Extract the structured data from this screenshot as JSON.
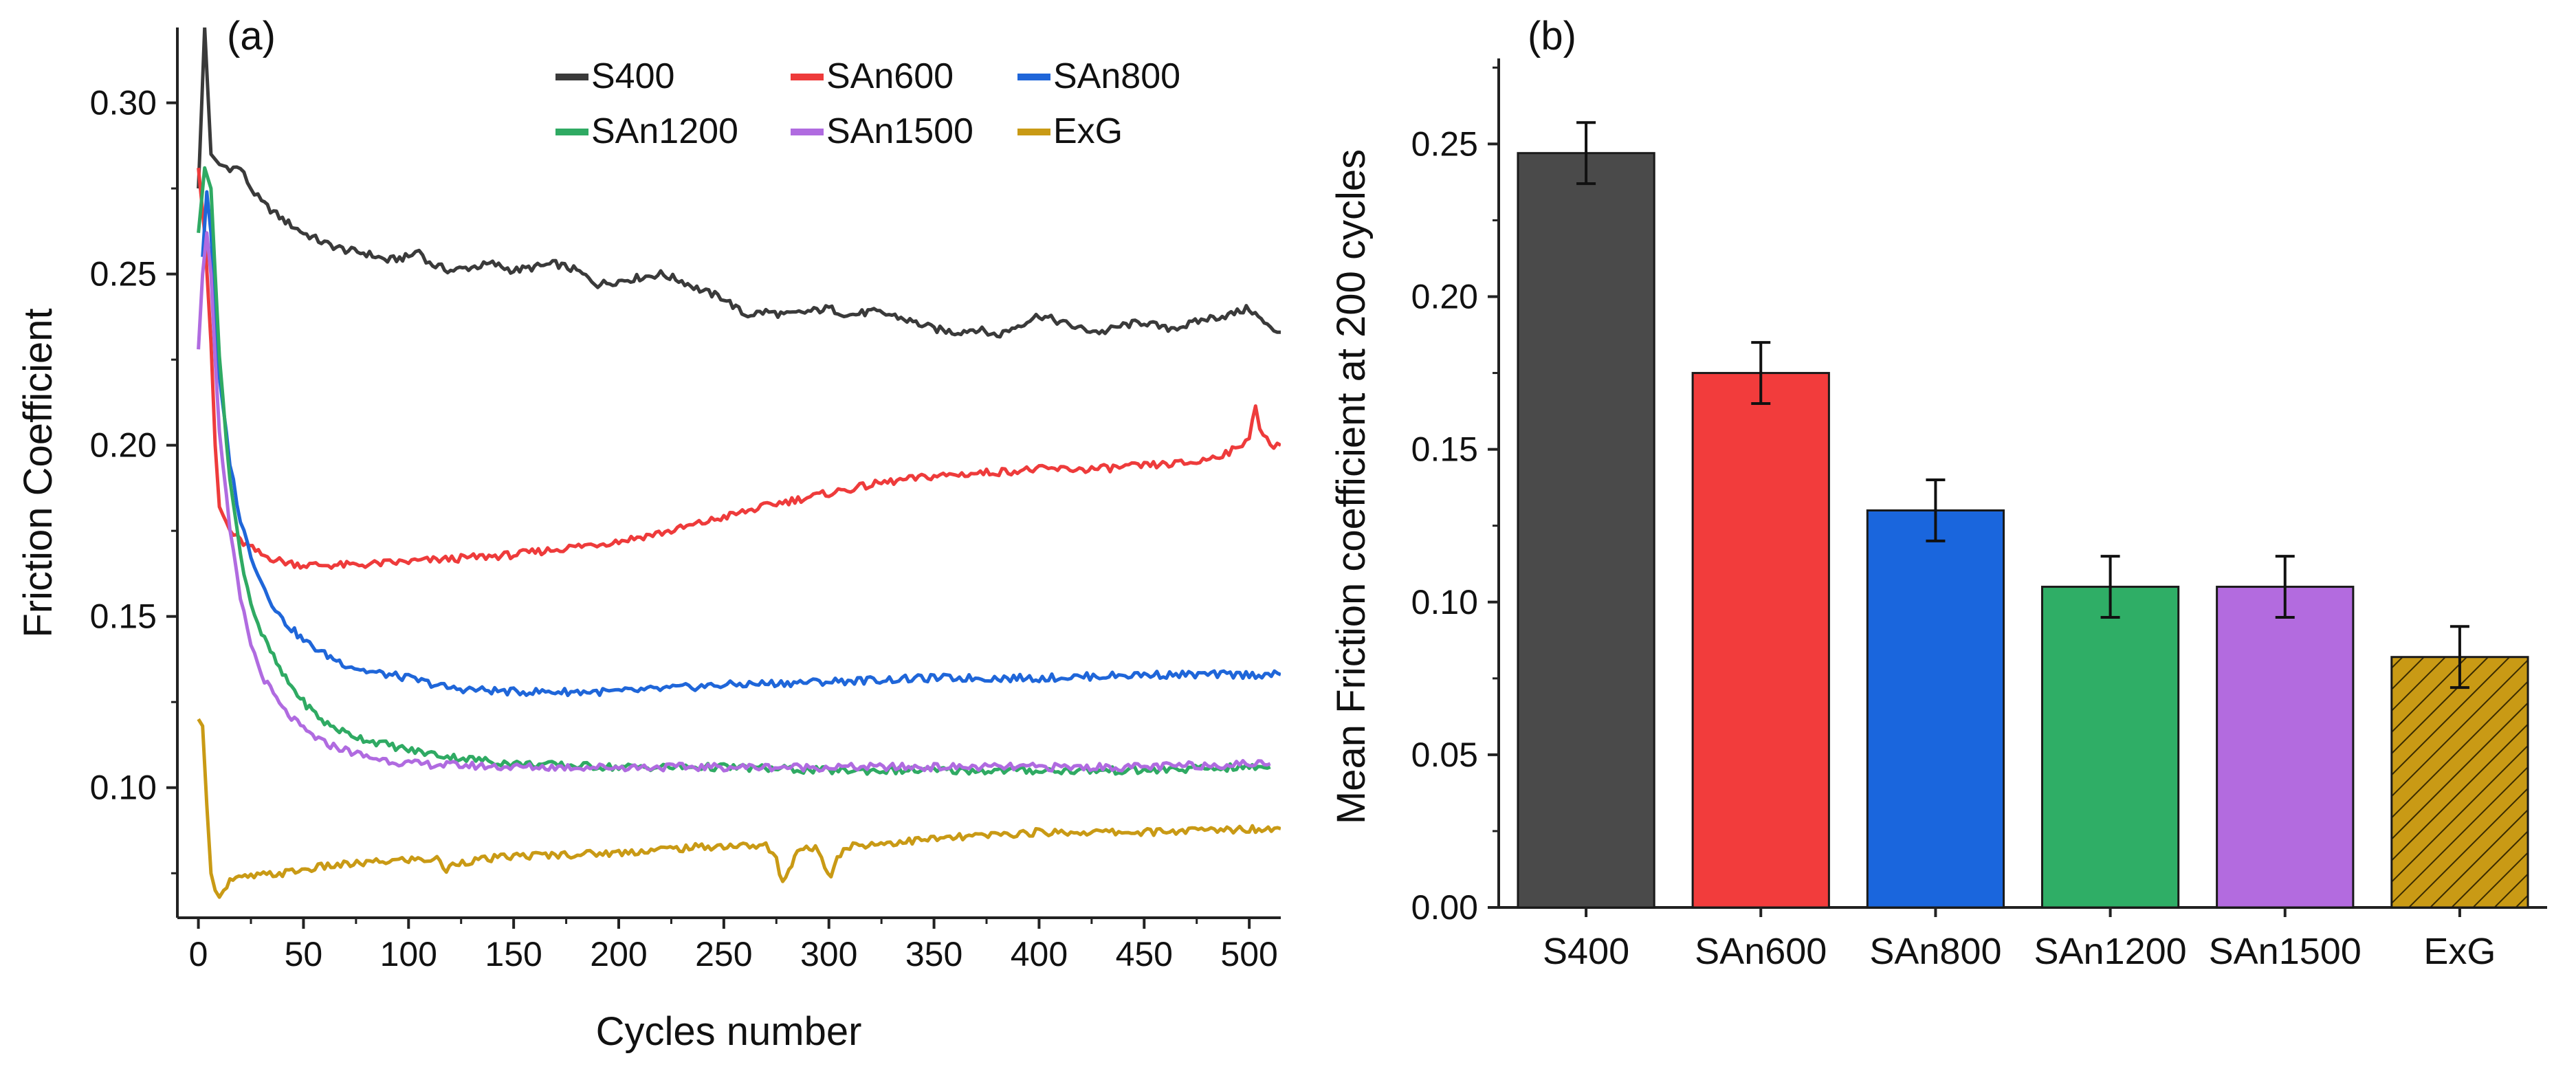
{
  "chart_data": [
    {
      "panel_label": "(a)",
      "type": "line",
      "xlabel": "Cycles number",
      "ylabel": "Friction Coefficient",
      "xlim": [
        -10,
        515
      ],
      "ylim": [
        0.062,
        0.322
      ],
      "xticks": [
        0,
        50,
        100,
        150,
        200,
        250,
        300,
        350,
        400,
        450,
        500
      ],
      "yticks": [
        0.1,
        0.15,
        0.2,
        0.25,
        0.3
      ],
      "yticks_labels": [
        "0.10",
        "0.15",
        "0.20",
        "0.25",
        "0.30"
      ],
      "legend_position": "top-right",
      "series": [
        {
          "name": "S400",
          "color": "#3a3a3a",
          "points": [
            [
              0,
              0.275
            ],
            [
              3,
              0.322
            ],
            [
              6,
              0.285
            ],
            [
              10,
              0.282
            ],
            [
              15,
              0.281
            ],
            [
              20,
              0.281
            ],
            [
              25,
              0.275
            ],
            [
              30,
              0.271
            ],
            [
              40,
              0.266
            ],
            [
              50,
              0.262
            ],
            [
              60,
              0.259
            ],
            [
              70,
              0.257
            ],
            [
              80,
              0.256
            ],
            [
              90,
              0.254
            ],
            [
              100,
              0.255
            ],
            [
              105,
              0.257
            ],
            [
              110,
              0.253
            ],
            [
              120,
              0.251
            ],
            [
              130,
              0.252
            ],
            [
              140,
              0.253
            ],
            [
              150,
              0.251
            ],
            [
              160,
              0.252
            ],
            [
              170,
              0.253
            ],
            [
              180,
              0.251
            ],
            [
              190,
              0.247
            ],
            [
              200,
              0.248
            ],
            [
              210,
              0.249
            ],
            [
              220,
              0.25
            ],
            [
              230,
              0.248
            ],
            [
              240,
              0.245
            ],
            [
              250,
              0.243
            ],
            [
              260,
              0.238
            ],
            [
              270,
              0.239
            ],
            [
              280,
              0.238
            ],
            [
              290,
              0.239
            ],
            [
              300,
              0.24
            ],
            [
              310,
              0.238
            ],
            [
              320,
              0.239
            ],
            [
              330,
              0.238
            ],
            [
              340,
              0.236
            ],
            [
              350,
              0.234
            ],
            [
              360,
              0.233
            ],
            [
              370,
              0.234
            ],
            [
              380,
              0.232
            ],
            [
              390,
              0.235
            ],
            [
              400,
              0.238
            ],
            [
              410,
              0.236
            ],
            [
              420,
              0.234
            ],
            [
              430,
              0.233
            ],
            [
              440,
              0.235
            ],
            [
              450,
              0.236
            ],
            [
              460,
              0.234
            ],
            [
              470,
              0.235
            ],
            [
              480,
              0.237
            ],
            [
              490,
              0.238
            ],
            [
              500,
              0.24
            ],
            [
              510,
              0.234
            ],
            [
              515,
              0.233
            ]
          ]
        },
        {
          "name": "SAn600",
          "color": "#ee3b3b",
          "points": [
            [
              0,
              0.281
            ],
            [
              3,
              0.262
            ],
            [
              6,
              0.23
            ],
            [
              8,
              0.2
            ],
            [
              10,
              0.182
            ],
            [
              15,
              0.175
            ],
            [
              20,
              0.172
            ],
            [
              30,
              0.168
            ],
            [
              40,
              0.166
            ],
            [
              50,
              0.165
            ],
            [
              75,
              0.165
            ],
            [
              100,
              0.166
            ],
            [
              125,
              0.167
            ],
            [
              150,
              0.168
            ],
            [
              175,
              0.17
            ],
            [
              200,
              0.172
            ],
            [
              225,
              0.175
            ],
            [
              250,
              0.179
            ],
            [
              275,
              0.183
            ],
            [
              300,
              0.186
            ],
            [
              325,
              0.189
            ],
            [
              350,
              0.191
            ],
            [
              375,
              0.192
            ],
            [
              400,
              0.193
            ],
            [
              425,
              0.193
            ],
            [
              450,
              0.194
            ],
            [
              475,
              0.195
            ],
            [
              495,
              0.199
            ],
            [
              500,
              0.203
            ],
            [
              503,
              0.212
            ],
            [
              505,
              0.204
            ],
            [
              510,
              0.2
            ],
            [
              515,
              0.2
            ]
          ]
        },
        {
          "name": "SAn800",
          "color": "#1f66d9",
          "points": [
            [
              2,
              0.255
            ],
            [
              4,
              0.274
            ],
            [
              6,
              0.262
            ],
            [
              8,
              0.24
            ],
            [
              10,
              0.22
            ],
            [
              15,
              0.195
            ],
            [
              20,
              0.178
            ],
            [
              25,
              0.168
            ],
            [
              30,
              0.16
            ],
            [
              35,
              0.154
            ],
            [
              40,
              0.149
            ],
            [
              50,
              0.143
            ],
            [
              60,
              0.139
            ],
            [
              70,
              0.136
            ],
            [
              80,
              0.134
            ],
            [
              100,
              0.132
            ],
            [
              120,
              0.129
            ],
            [
              150,
              0.128
            ],
            [
              200,
              0.128
            ],
            [
              250,
              0.13
            ],
            [
              300,
              0.131
            ],
            [
              350,
              0.132
            ],
            [
              400,
              0.132
            ],
            [
              450,
              0.133
            ],
            [
              500,
              0.133
            ],
            [
              515,
              0.133
            ]
          ]
        },
        {
          "name": "SAn1200",
          "color": "#2faa63",
          "points": [
            [
              0,
              0.262
            ],
            [
              3,
              0.281
            ],
            [
              6,
              0.275
            ],
            [
              8,
              0.25
            ],
            [
              10,
              0.226
            ],
            [
              15,
              0.19
            ],
            [
              20,
              0.168
            ],
            [
              25,
              0.154
            ],
            [
              30,
              0.145
            ],
            [
              40,
              0.133
            ],
            [
              50,
              0.125
            ],
            [
              60,
              0.119
            ],
            [
              70,
              0.116
            ],
            [
              80,
              0.114
            ],
            [
              100,
              0.111
            ],
            [
              120,
              0.109
            ],
            [
              150,
              0.107
            ],
            [
              200,
              0.106
            ],
            [
              250,
              0.106
            ],
            [
              300,
              0.105
            ],
            [
              350,
              0.105
            ],
            [
              400,
              0.105
            ],
            [
              450,
              0.105
            ],
            [
              500,
              0.106
            ],
            [
              510,
              0.106
            ]
          ]
        },
        {
          "name": "SAn1500",
          "color": "#b06be0",
          "points": [
            [
              0,
              0.228
            ],
            [
              2,
              0.25
            ],
            [
              4,
              0.262
            ],
            [
              6,
              0.25
            ],
            [
              8,
              0.225
            ],
            [
              10,
              0.204
            ],
            [
              15,
              0.175
            ],
            [
              20,
              0.155
            ],
            [
              25,
              0.142
            ],
            [
              30,
              0.133
            ],
            [
              40,
              0.123
            ],
            [
              50,
              0.117
            ],
            [
              60,
              0.113
            ],
            [
              70,
              0.111
            ],
            [
              80,
              0.109
            ],
            [
              100,
              0.107
            ],
            [
              150,
              0.106
            ],
            [
              200,
              0.106
            ],
            [
              250,
              0.106
            ],
            [
              300,
              0.106
            ],
            [
              350,
              0.106
            ],
            [
              400,
              0.106
            ],
            [
              450,
              0.106
            ],
            [
              500,
              0.107
            ],
            [
              510,
              0.107
            ]
          ]
        },
        {
          "name": "ExG",
          "color": "#c99a15",
          "points": [
            [
              0,
              0.12
            ],
            [
              2,
              0.118
            ],
            [
              4,
              0.095
            ],
            [
              6,
              0.075
            ],
            [
              8,
              0.07
            ],
            [
              10,
              0.068
            ],
            [
              12,
              0.07
            ],
            [
              15,
              0.073
            ],
            [
              25,
              0.074
            ],
            [
              40,
              0.075
            ],
            [
              60,
              0.077
            ],
            [
              80,
              0.078
            ],
            [
              100,
              0.079
            ],
            [
              115,
              0.079
            ],
            [
              118,
              0.075
            ],
            [
              121,
              0.078
            ],
            [
              150,
              0.08
            ],
            [
              200,
              0.081
            ],
            [
              220,
              0.082
            ],
            [
              250,
              0.083
            ],
            [
              270,
              0.083
            ],
            [
              275,
              0.079
            ],
            [
              278,
              0.072
            ],
            [
              281,
              0.076
            ],
            [
              285,
              0.082
            ],
            [
              295,
              0.082
            ],
            [
              298,
              0.077
            ],
            [
              301,
              0.075
            ],
            [
              304,
              0.08
            ],
            [
              310,
              0.083
            ],
            [
              350,
              0.085
            ],
            [
              400,
              0.087
            ],
            [
              450,
              0.087
            ],
            [
              500,
              0.088
            ],
            [
              515,
              0.088
            ]
          ]
        }
      ],
      "legend": [
        "S400",
        "SAn600",
        "SAn800",
        "SAn1200",
        "SAn1500",
        "ExG"
      ]
    },
    {
      "panel_label": "(b)",
      "type": "bar",
      "xlabel": "",
      "ylabel": "Mean Friction coefficient at 200 cycles",
      "ylim": [
        0,
        0.278
      ],
      "yticks": [
        0,
        0.05,
        0.1,
        0.15,
        0.2,
        0.25
      ],
      "yticks_labels": [
        "0.00",
        "0.05",
        "0.10",
        "0.15",
        "0.20",
        "0.25"
      ],
      "categories": [
        "S400",
        "SAn600",
        "SAn800",
        "SAn1200",
        "SAn1500",
        "ExG"
      ],
      "values": [
        0.247,
        0.175,
        0.13,
        0.105,
        0.105,
        0.082
      ],
      "errors": [
        0.01,
        0.01,
        0.01,
        0.01,
        0.01,
        0.01
      ],
      "colors": [
        "#4a4a4a",
        "#f23c3c",
        "#1a66dd",
        "#2fae66",
        "#b36bdf",
        "#c99a15"
      ],
      "hatched": [
        false,
        false,
        false,
        false,
        false,
        true
      ]
    }
  ]
}
